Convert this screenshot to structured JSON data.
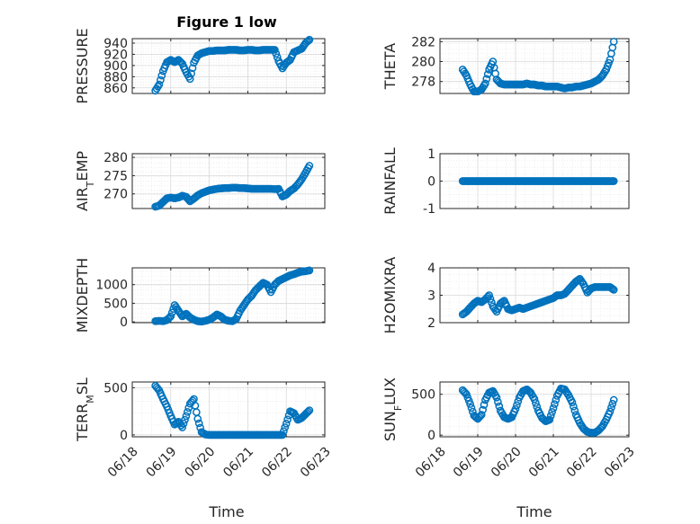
{
  "figure": {
    "title": "Figure 1 low",
    "x_axis_label": "Time"
  },
  "colors": {
    "marker": "#0072bd",
    "grid_major": "#d9d9d9",
    "grid_minor": "#ebebeb",
    "axis": "#262626",
    "background": "#ffffff"
  },
  "chart_data": [
    {
      "type": "scatter",
      "marker": "circle",
      "ylabel": "PRESSURE",
      "ylabel_parts": [
        [
          "PRESSURE",
          false
        ]
      ],
      "xlim": [
        "06/18",
        "06/23"
      ],
      "xticks": [
        "06/18",
        "06/19",
        "06/20",
        "06/21",
        "06/22",
        "06/23"
      ],
      "ylim": [
        850,
        948
      ],
      "yticks": [
        860,
        880,
        900,
        920,
        940
      ],
      "x_num": [
        0.6,
        0.7,
        0.8,
        0.9,
        1.0,
        1.1,
        1.2,
        1.3,
        1.4,
        1.5,
        1.6,
        1.7,
        1.8,
        1.9,
        2.0,
        2.1,
        2.2,
        2.3,
        2.4,
        2.5,
        2.6,
        2.7,
        2.8,
        2.9,
        3.0,
        3.1,
        3.2,
        3.3,
        3.4,
        3.5,
        3.6,
        3.7,
        3.8,
        3.9,
        4.0,
        4.1,
        4.2,
        4.3,
        4.4,
        4.5,
        4.6
      ],
      "y": [
        855,
        866,
        890,
        906,
        910,
        906,
        910,
        903,
        888,
        876,
        905,
        918,
        922,
        924,
        926,
        926,
        927,
        927,
        927,
        928,
        928,
        928,
        927,
        927,
        928,
        928,
        927,
        927,
        928,
        928,
        928,
        928,
        908,
        895,
        905,
        910,
        924,
        927,
        930,
        940,
        946
      ]
    },
    {
      "type": "scatter",
      "marker": "circle",
      "ylabel": "THETA",
      "ylabel_parts": [
        [
          "THETA",
          false
        ]
      ],
      "xlim": [
        "06/18",
        "06/23"
      ],
      "xticks": [
        "06/18",
        "06/19",
        "06/20",
        "06/21",
        "06/22",
        "06/23"
      ],
      "ylim": [
        276.8,
        282.3
      ],
      "yticks": [
        278,
        280,
        282
      ],
      "x_num": [
        0.6,
        0.7,
        0.8,
        0.9,
        1.0,
        1.1,
        1.2,
        1.3,
        1.4,
        1.5,
        1.6,
        1.7,
        1.8,
        1.9,
        2.0,
        2.1,
        2.2,
        2.3,
        2.4,
        2.5,
        2.6,
        2.7,
        2.8,
        2.9,
        3.0,
        3.1,
        3.2,
        3.3,
        3.4,
        3.5,
        3.6,
        3.7,
        3.8,
        3.9,
        4.0,
        4.1,
        4.2,
        4.3,
        4.4,
        4.5,
        4.6
      ],
      "y": [
        279.2,
        278.6,
        277.7,
        277.0,
        277.0,
        277.2,
        277.8,
        279.2,
        280.0,
        278.2,
        277.8,
        277.7,
        277.7,
        277.7,
        277.7,
        277.7,
        277.7,
        277.8,
        277.7,
        277.7,
        277.6,
        277.6,
        277.5,
        277.5,
        277.5,
        277.5,
        277.4,
        277.3,
        277.4,
        277.4,
        277.5,
        277.5,
        277.6,
        277.7,
        277.8,
        278.0,
        278.2,
        278.6,
        279.2,
        280.2,
        282.0
      ]
    },
    {
      "type": "scatter",
      "marker": "circle",
      "ylabel": "AIR_TEMP",
      "ylabel_parts": [
        [
          "AIR",
          false
        ],
        [
          "T",
          true
        ],
        [
          "EMP",
          false
        ]
      ],
      "xlim": [
        "06/18",
        "06/23"
      ],
      "xticks": [
        "06/18",
        "06/19",
        "06/20",
        "06/21",
        "06/22",
        "06/23"
      ],
      "ylim": [
        266,
        281
      ],
      "yticks": [
        270,
        275,
        280
      ],
      "x_num": [
        0.6,
        0.7,
        0.8,
        0.9,
        1.0,
        1.1,
        1.2,
        1.3,
        1.4,
        1.5,
        1.6,
        1.7,
        1.8,
        1.9,
        2.0,
        2.1,
        2.2,
        2.3,
        2.4,
        2.5,
        2.6,
        2.7,
        2.8,
        2.9,
        3.0,
        3.1,
        3.2,
        3.3,
        3.4,
        3.5,
        3.6,
        3.7,
        3.8,
        3.9,
        4.0,
        4.1,
        4.2,
        4.3,
        4.4,
        4.5,
        4.6
      ],
      "y": [
        266.5,
        266.8,
        267.8,
        268.8,
        269.0,
        268.8,
        269.0,
        269.5,
        269.2,
        268.0,
        268.7,
        269.6,
        270.2,
        270.6,
        271.0,
        271.2,
        271.4,
        271.5,
        271.6,
        271.6,
        271.7,
        271.7,
        271.6,
        271.6,
        271.5,
        271.4,
        271.4,
        271.4,
        271.4,
        271.4,
        271.4,
        271.3,
        271.4,
        269.3,
        269.8,
        270.8,
        271.5,
        272.6,
        274.0,
        275.8,
        277.7
      ]
    },
    {
      "type": "scatter",
      "marker": "circle",
      "ylabel": "RAINFALL",
      "ylabel_parts": [
        [
          "RAINFALL",
          false
        ]
      ],
      "xlim": [
        "06/18",
        "06/23"
      ],
      "xticks": [
        "06/18",
        "06/19",
        "06/20",
        "06/21",
        "06/22",
        "06/23"
      ],
      "ylim": [
        -1,
        1
      ],
      "yticks": [
        -1,
        0,
        1
      ],
      "x_num": [
        0.6,
        0.7,
        0.8,
        0.9,
        1.0,
        1.1,
        1.2,
        1.3,
        1.4,
        1.5,
        1.6,
        1.7,
        1.8,
        1.9,
        2.0,
        2.1,
        2.2,
        2.3,
        2.4,
        2.5,
        2.6,
        2.7,
        2.8,
        2.9,
        3.0,
        3.1,
        3.2,
        3.3,
        3.4,
        3.5,
        3.6,
        3.7,
        3.8,
        3.9,
        4.0,
        4.1,
        4.2,
        4.3,
        4.4,
        4.5,
        4.6
      ],
      "y": [
        0,
        0,
        0,
        0,
        0,
        0,
        0,
        0,
        0,
        0,
        0,
        0,
        0,
        0,
        0,
        0,
        0,
        0,
        0,
        0,
        0,
        0,
        0,
        0,
        0,
        0,
        0,
        0,
        0,
        0,
        0,
        0,
        0,
        0,
        0,
        0,
        0,
        0,
        0,
        0,
        0
      ]
    },
    {
      "type": "scatter",
      "marker": "circle",
      "ylabel": "MIXDEPTH",
      "ylabel_parts": [
        [
          "MIXDEPTH",
          false
        ]
      ],
      "xlim": [
        "06/18",
        "06/23"
      ],
      "xticks": [
        "06/18",
        "06/19",
        "06/20",
        "06/21",
        "06/22",
        "06/23"
      ],
      "ylim": [
        -20,
        1450
      ],
      "yticks": [
        0,
        500,
        1000
      ],
      "x_num": [
        0.6,
        0.7,
        0.8,
        0.9,
        1.0,
        1.1,
        1.2,
        1.3,
        1.4,
        1.5,
        1.6,
        1.7,
        1.8,
        1.9,
        2.0,
        2.1,
        2.2,
        2.3,
        2.4,
        2.5,
        2.6,
        2.7,
        2.8,
        2.9,
        3.0,
        3.1,
        3.2,
        3.3,
        3.4,
        3.5,
        3.6,
        3.7,
        3.8,
        3.9,
        4.0,
        4.1,
        4.2,
        4.3,
        4.4,
        4.5,
        4.6
      ],
      "y": [
        20,
        30,
        20,
        50,
        150,
        450,
        300,
        150,
        220,
        120,
        60,
        20,
        10,
        30,
        60,
        120,
        200,
        150,
        60,
        30,
        20,
        80,
        300,
        450,
        600,
        700,
        850,
        950,
        1050,
        1000,
        800,
        1000,
        1100,
        1150,
        1200,
        1250,
        1280,
        1320,
        1350,
        1360,
        1380
      ]
    },
    {
      "type": "scatter",
      "marker": "circle",
      "ylabel": "H2OMIXRA",
      "ylabel_parts": [
        [
          "H2OMIXRA",
          false
        ]
      ],
      "xlim": [
        "06/18",
        "06/23"
      ],
      "xticks": [
        "06/18",
        "06/19",
        "06/20",
        "06/21",
        "06/22",
        "06/23"
      ],
      "ylim": [
        2,
        4
      ],
      "yticks": [
        2,
        3,
        4
      ],
      "x_num": [
        0.6,
        0.7,
        0.8,
        0.9,
        1.0,
        1.1,
        1.2,
        1.3,
        1.4,
        1.5,
        1.6,
        1.7,
        1.8,
        1.9,
        2.0,
        2.1,
        2.2,
        2.3,
        2.4,
        2.5,
        2.6,
        2.7,
        2.8,
        2.9,
        3.0,
        3.1,
        3.2,
        3.3,
        3.4,
        3.5,
        3.6,
        3.7,
        3.8,
        3.9,
        4.0,
        4.1,
        4.2,
        4.3,
        4.4,
        4.5,
        4.6
      ],
      "y": [
        2.3,
        2.4,
        2.55,
        2.7,
        2.8,
        2.75,
        2.85,
        3.0,
        2.6,
        2.4,
        2.7,
        2.8,
        2.5,
        2.45,
        2.5,
        2.55,
        2.5,
        2.55,
        2.6,
        2.65,
        2.7,
        2.75,
        2.8,
        2.85,
        2.9,
        3.0,
        3.0,
        3.05,
        3.2,
        3.35,
        3.5,
        3.6,
        3.4,
        3.1,
        3.25,
        3.3,
        3.3,
        3.3,
        3.3,
        3.3,
        3.2
      ]
    },
    {
      "type": "scatter",
      "marker": "circle",
      "ylabel": "TERR_MSL",
      "ylabel_parts": [
        [
          "TERR",
          false
        ],
        [
          "M",
          true
        ],
        [
          "SL",
          false
        ]
      ],
      "xlim": [
        "06/18",
        "06/23"
      ],
      "xticks": [
        "06/18",
        "06/19",
        "06/20",
        "06/21",
        "06/22",
        "06/23"
      ],
      "ylim": [
        -20,
        560
      ],
      "yticks": [
        0,
        500
      ],
      "x_num": [
        0.6,
        0.7,
        0.8,
        0.9,
        1.0,
        1.1,
        1.2,
        1.3,
        1.4,
        1.5,
        1.6,
        1.7,
        1.8,
        1.9,
        2.0,
        2.1,
        2.2,
        2.3,
        2.4,
        2.5,
        2.6,
        2.7,
        2.8,
        2.9,
        3.0,
        3.1,
        3.2,
        3.3,
        3.4,
        3.5,
        3.6,
        3.7,
        3.8,
        3.9,
        4.0,
        4.1,
        4.2,
        4.3,
        4.4,
        4.5,
        4.6
      ],
      "y": [
        520,
        470,
        380,
        300,
        200,
        110,
        140,
        80,
        200,
        330,
        380,
        170,
        30,
        5,
        0,
        0,
        0,
        0,
        0,
        0,
        0,
        0,
        0,
        0,
        0,
        0,
        0,
        0,
        0,
        0,
        0,
        0,
        0,
        0,
        120,
        250,
        230,
        160,
        180,
        220,
        260
      ]
    },
    {
      "type": "scatter",
      "marker": "circle",
      "ylabel": "SUN_FLUX",
      "ylabel_parts": [
        [
          "SUN",
          false
        ],
        [
          "F",
          true
        ],
        [
          "LUX",
          false
        ]
      ],
      "xlim": [
        "06/18",
        "06/23"
      ],
      "xticks": [
        "06/18",
        "06/19",
        "06/20",
        "06/21",
        "06/22",
        "06/23"
      ],
      "ylim": [
        -20,
        650
      ],
      "yticks": [
        0,
        500
      ],
      "x_num": [
        0.6,
        0.7,
        0.8,
        0.9,
        1.0,
        1.1,
        1.2,
        1.3,
        1.4,
        1.5,
        1.6,
        1.7,
        1.8,
        1.9,
        2.0,
        2.1,
        2.2,
        2.3,
        2.4,
        2.5,
        2.6,
        2.7,
        2.8,
        2.9,
        3.0,
        3.1,
        3.2,
        3.3,
        3.4,
        3.5,
        3.6,
        3.7,
        3.8,
        3.9,
        4.0,
        4.1,
        4.2,
        4.3,
        4.4,
        4.5,
        4.6
      ],
      "y": [
        550,
        500,
        380,
        240,
        200,
        250,
        430,
        520,
        540,
        460,
        300,
        220,
        200,
        220,
        320,
        460,
        540,
        560,
        520,
        440,
        300,
        210,
        170,
        190,
        330,
        480,
        570,
        560,
        490,
        400,
        250,
        150,
        80,
        40,
        30,
        30,
        60,
        110,
        190,
        290,
        430
      ]
    }
  ]
}
